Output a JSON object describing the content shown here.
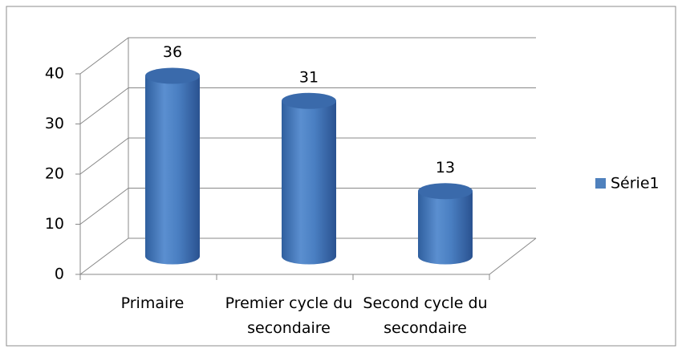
{
  "chart_data": {
    "type": "cylinder3d",
    "categories": [
      "Primaire",
      "Premier cycle du secondaire",
      "Second cycle du secondaire"
    ],
    "series": [
      {
        "name": "Série1",
        "color": "#4f81bd",
        "values": [
          36,
          31,
          13
        ]
      }
    ],
    "ylim": [
      0,
      40
    ],
    "yticks": [
      0,
      10,
      20,
      30,
      40
    ],
    "grid": true,
    "legend": "right"
  }
}
